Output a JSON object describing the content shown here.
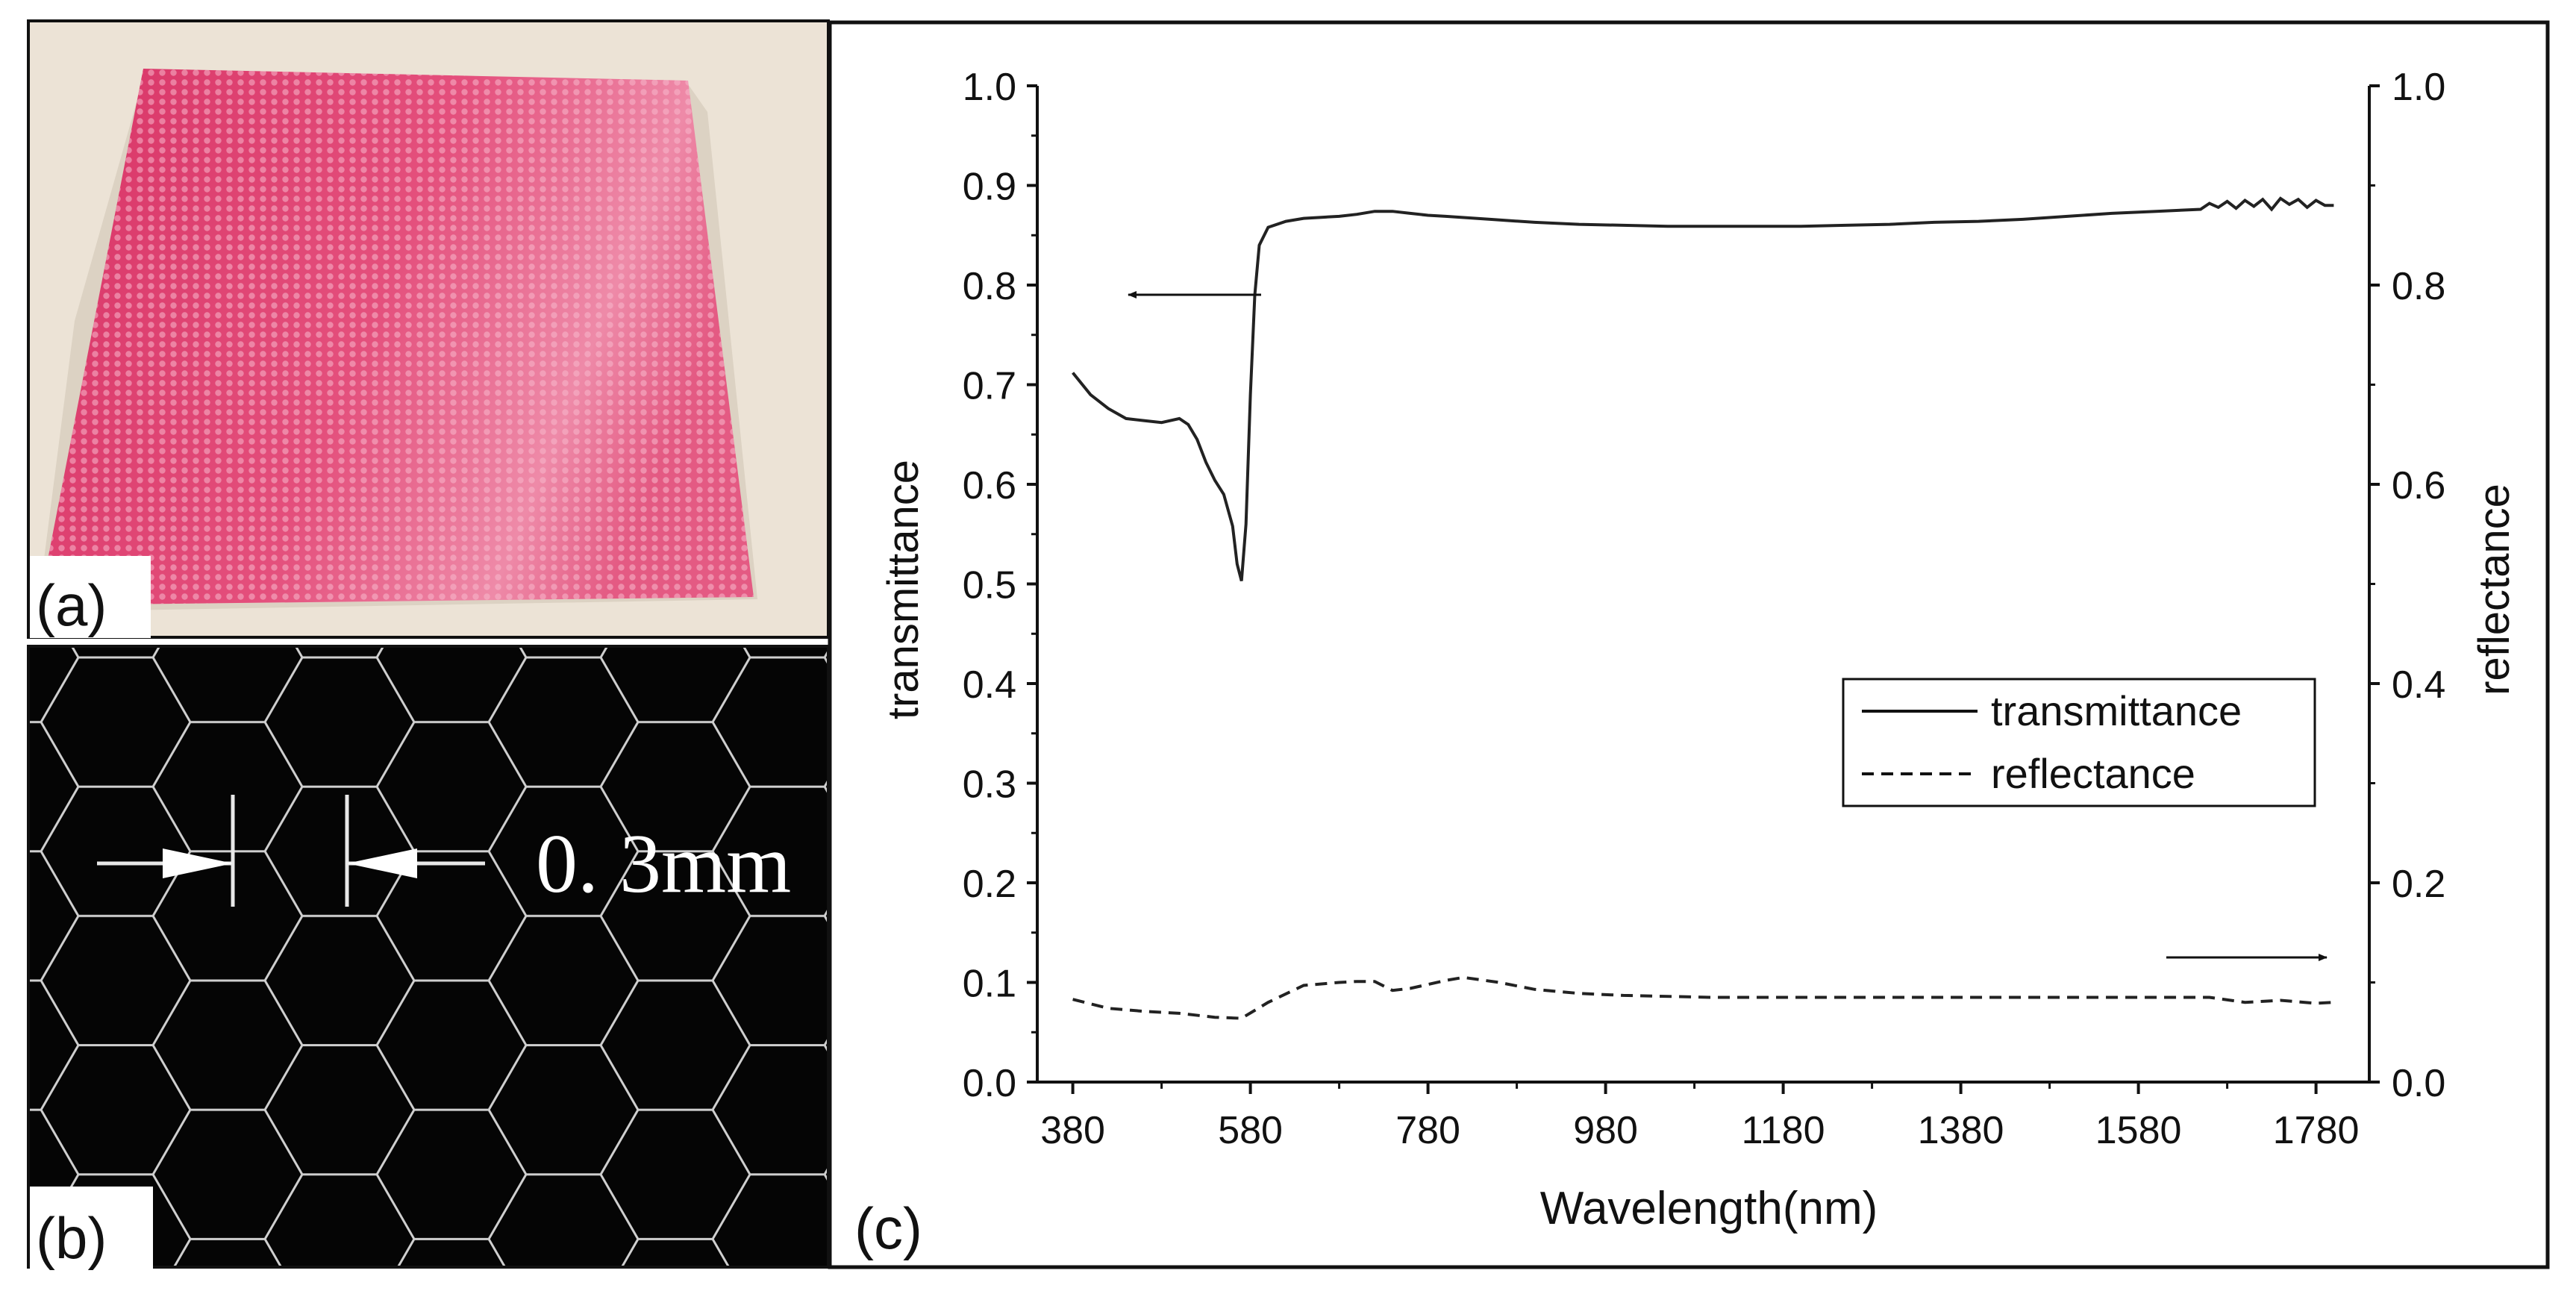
{
  "panels": {
    "a": {
      "label": "(a)"
    },
    "b": {
      "label": "(b)",
      "scale_text": "0. 3mm"
    },
    "c": {
      "label": "(c)"
    }
  },
  "colors": {
    "sample_pink": "#e23f70",
    "sample_light": "#f5a9c0",
    "background_beige": "#ece3d6",
    "honeycomb_line": "#cfcfcf",
    "curve": "#222222"
  },
  "chart_data": {
    "type": "line",
    "title": "",
    "xlabel": "Wavelength(nm)",
    "ylabel_left": "transmittance",
    "ylabel_right": "reflectance",
    "xlim": [
      340,
      1840
    ],
    "ylim": [
      0.0,
      1.0
    ],
    "x_ticks": [
      "380",
      "580",
      "780",
      "980",
      "1180",
      "1380",
      "1580",
      "1780"
    ],
    "y_ticks_left": [
      "0.0",
      "0.1",
      "0.2",
      "0.3",
      "0.4",
      "0.5",
      "0.6",
      "0.7",
      "0.8",
      "0.9",
      "1.0"
    ],
    "y_ticks_right": [
      "0.0",
      "0.2",
      "0.4",
      "0.6",
      "0.8",
      "1.0"
    ],
    "legend": {
      "position": "center-right",
      "entries": [
        "transmittance",
        "reflectance"
      ]
    },
    "annotations": [
      {
        "type": "arrow",
        "direction": "left",
        "points_to": "transmittance axis"
      },
      {
        "type": "arrow",
        "direction": "right",
        "points_to": "reflectance axis"
      }
    ],
    "series": [
      {
        "name": "transmittance",
        "style": "solid",
        "x": [
          380,
          400,
          420,
          440,
          460,
          480,
          500,
          510,
          520,
          530,
          540,
          550,
          560,
          565,
          570,
          575,
          580,
          585,
          590,
          600,
          620,
          640,
          660,
          680,
          700,
          720,
          740,
          760,
          780,
          800,
          850,
          900,
          950,
          1000,
          1050,
          1100,
          1150,
          1200,
          1250,
          1300,
          1350,
          1400,
          1450,
          1500,
          1550,
          1600,
          1650,
          1660,
          1670,
          1680,
          1690,
          1700,
          1710,
          1720,
          1730,
          1740,
          1750,
          1760,
          1770,
          1780,
          1790,
          1800
        ],
        "y": [
          0.712,
          0.69,
          0.676,
          0.666,
          0.664,
          0.662,
          0.666,
          0.66,
          0.645,
          0.622,
          0.604,
          0.59,
          0.558,
          0.52,
          0.503,
          0.56,
          0.69,
          0.79,
          0.84,
          0.858,
          0.864,
          0.867,
          0.868,
          0.869,
          0.871,
          0.874,
          0.874,
          0.872,
          0.87,
          0.869,
          0.866,
          0.863,
          0.861,
          0.86,
          0.859,
          0.859,
          0.859,
          0.859,
          0.86,
          0.861,
          0.863,
          0.864,
          0.866,
          0.869,
          0.872,
          0.874,
          0.876,
          0.882,
          0.878,
          0.884,
          0.877,
          0.885,
          0.879,
          0.886,
          0.876,
          0.887,
          0.881,
          0.886,
          0.878,
          0.885,
          0.88,
          0.88
        ]
      },
      {
        "name": "reflectance",
        "style": "dashed",
        "x": [
          380,
          420,
          460,
          500,
          540,
          570,
          600,
          640,
          680,
          700,
          720,
          740,
          760,
          780,
          800,
          820,
          860,
          900,
          950,
          1000,
          1100,
          1200,
          1300,
          1400,
          1500,
          1600,
          1660,
          1700,
          1740,
          1780,
          1800
        ],
        "y": [
          0.083,
          0.074,
          0.071,
          0.069,
          0.065,
          0.064,
          0.08,
          0.097,
          0.1,
          0.101,
          0.101,
          0.092,
          0.094,
          0.098,
          0.102,
          0.105,
          0.1,
          0.093,
          0.089,
          0.087,
          0.085,
          0.085,
          0.085,
          0.085,
          0.085,
          0.085,
          0.085,
          0.08,
          0.082,
          0.079,
          0.08
        ]
      }
    ]
  }
}
